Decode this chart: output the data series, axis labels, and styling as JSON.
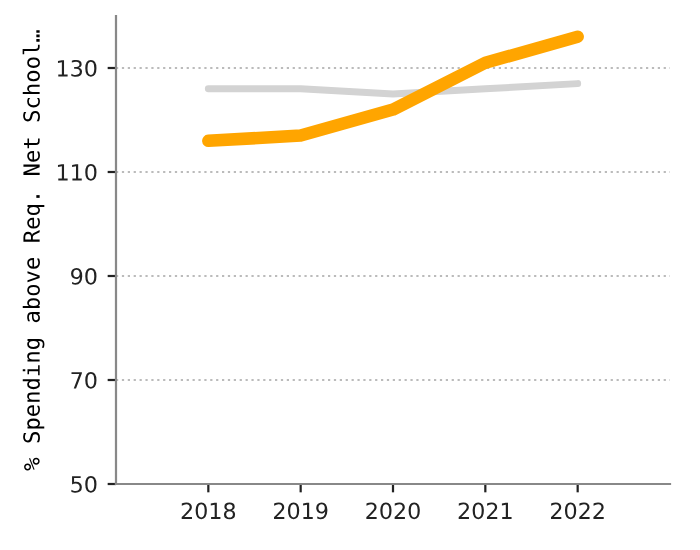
{
  "chart_data": {
    "type": "line",
    "ylabel": "% Spending above Req. Net School…",
    "categories": [
      "2018",
      "2019",
      "2020",
      "2021",
      "2022"
    ],
    "series": [
      {
        "color": "#d3d3d3",
        "values": [
          126,
          126,
          125,
          126,
          127
        ]
      },
      {
        "color": "#ffa500",
        "values": [
          116,
          117,
          122,
          131,
          136
        ]
      }
    ],
    "ylim": [
      50,
      140
    ],
    "yticks": [
      50,
      70,
      90,
      110,
      130
    ],
    "grid": "y",
    "line_style": "solid",
    "marker": "none"
  }
}
